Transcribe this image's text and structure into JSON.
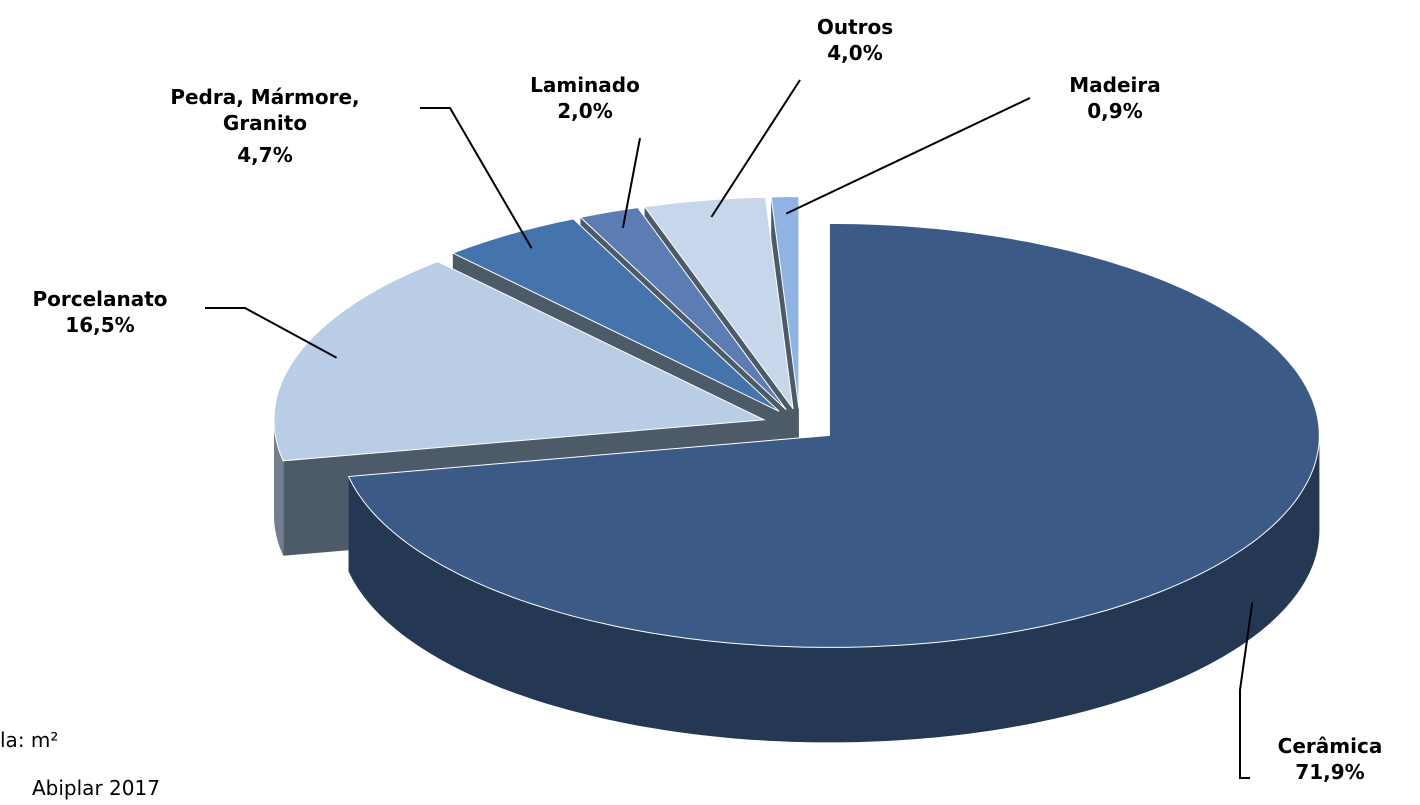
{
  "chart_data": {
    "type": "pie3d",
    "categories": [
      "Cerâmica",
      "Porcelanato",
      "Pedra, Mármore, Granito",
      "Laminado",
      "Outros",
      "Madeira"
    ],
    "values": [
      71.9,
      16.5,
      4.7,
      2.0,
      4.0,
      0.9
    ],
    "value_labels": [
      "71,9%",
      "16,5%",
      "4,7%",
      "2,0%",
      "4,0%",
      "0,9%"
    ],
    "colors": [
      "#3b5b86",
      "#b9cde6",
      "#4574ac",
      "#5c7db4",
      "#c6d6eb",
      "#8fb4e3"
    ],
    "notes": [
      "la: m²",
      "Abiplar 2017"
    ]
  }
}
